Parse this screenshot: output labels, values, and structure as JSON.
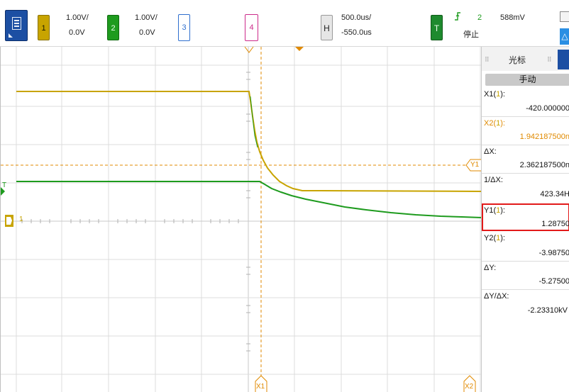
{
  "topbar": {
    "ch1": {
      "badge": "1",
      "scale": "1.00V/",
      "offset": "0.0V"
    },
    "ch2": {
      "badge": "2",
      "scale": "1.00V/",
      "offset": "0.0V"
    },
    "ch3": {
      "badge": "3"
    },
    "ch4": {
      "badge": "4"
    },
    "horizontal": {
      "badge": "H",
      "scale": "500.0us/",
      "delay": "-550.0us"
    },
    "trigger": {
      "badge": "T",
      "edge_icon": "⬯",
      "source": "2",
      "level": "588mV",
      "status": "停止"
    },
    "delta_icon": "△"
  },
  "cursor_panel": {
    "title": "光标",
    "mode": "手动",
    "x1": {
      "label": "X1(",
      "ch": "1",
      "close": "):",
      "value": "-420.000000"
    },
    "x2": {
      "label": "X2(",
      "ch": "1",
      "close": "):",
      "value": "1.942187500n"
    },
    "dx": {
      "label": "ΔX:",
      "value": "2.362187500n"
    },
    "inv_dx": {
      "label": "1/ΔX:",
      "value": "423.34H"
    },
    "y1": {
      "label": "Y1(",
      "ch": "1",
      "close": "):",
      "value": "1.28750"
    },
    "y2": {
      "label": "Y2(",
      "ch": "1",
      "close": "):",
      "value": "-3.98750"
    },
    "dy": {
      "label": "ΔY:",
      "value": "-5.27500"
    },
    "dydx": {
      "label": "ΔY/ΔX:",
      "value": "-2.23310kV"
    }
  },
  "screen": {
    "cursor_labels": {
      "x1": "X1",
      "x2": "X2",
      "y1": "Y1"
    },
    "ch1_marker": "1",
    "trigger_marker": "T"
  },
  "colors": {
    "ch1": "#c8a400",
    "ch2": "#1e9b1e",
    "cursor": "#e08a00",
    "highlight": "#e21a1a"
  }
}
